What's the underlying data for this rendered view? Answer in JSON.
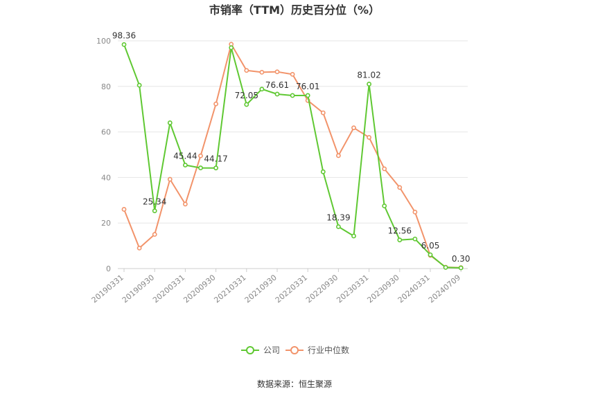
{
  "chart_data": {
    "type": "line",
    "title": "市销率（TTM）历史百分位（%）",
    "source": "数据来源：恒生聚源",
    "ylim": [
      0,
      100
    ],
    "yticks": [
      "0",
      "20",
      "40",
      "60",
      "80",
      "100"
    ],
    "xticks": [
      "20190331",
      "20190930",
      "20200331",
      "20200930",
      "20210331",
      "20210930",
      "20220331",
      "20220930",
      "20230331",
      "20230930",
      "20240331",
      "20240709"
    ],
    "grid": true,
    "legend_position": "bottom",
    "series": [
      {
        "name": "公司",
        "color": "#5fc832",
        "values": [
          98.36,
          80.5,
          25.34,
          64.0,
          45.44,
          44.2,
          44.17,
          97.0,
          72.05,
          78.8,
          76.61,
          76.0,
          76.01,
          42.5,
          18.39,
          14.3,
          81.02,
          27.5,
          12.56,
          13.0,
          6.05,
          0.5,
          0.3
        ]
      },
      {
        "name": "行业中位数",
        "color": "#f2936a",
        "values": [
          26.0,
          9.0,
          15.0,
          39.2,
          28.3,
          49.5,
          72.3,
          98.5,
          87.0,
          86.2,
          86.4,
          85.3,
          73.8,
          68.4,
          49.6,
          61.8,
          57.6,
          43.8,
          35.6,
          24.8,
          5.8,
          0.6,
          0.4
        ]
      }
    ],
    "data_labels": [
      {
        "series": 0,
        "index": 0,
        "text": "98.36"
      },
      {
        "series": 0,
        "index": 2,
        "text": "25.34"
      },
      {
        "series": 0,
        "index": 4,
        "text": "45.44"
      },
      {
        "series": 0,
        "index": 6,
        "text": "44.17"
      },
      {
        "series": 0,
        "index": 8,
        "text": "72.05"
      },
      {
        "series": 0,
        "index": 10,
        "text": "76.61"
      },
      {
        "series": 0,
        "index": 12,
        "text": "76.01"
      },
      {
        "series": 0,
        "index": 14,
        "text": "18.39"
      },
      {
        "series": 0,
        "index": 16,
        "text": "81.02"
      },
      {
        "series": 0,
        "index": 18,
        "text": "12.56"
      },
      {
        "series": 0,
        "index": 20,
        "text": "6.05"
      },
      {
        "series": 0,
        "index": 22,
        "text": "0.30"
      }
    ]
  }
}
